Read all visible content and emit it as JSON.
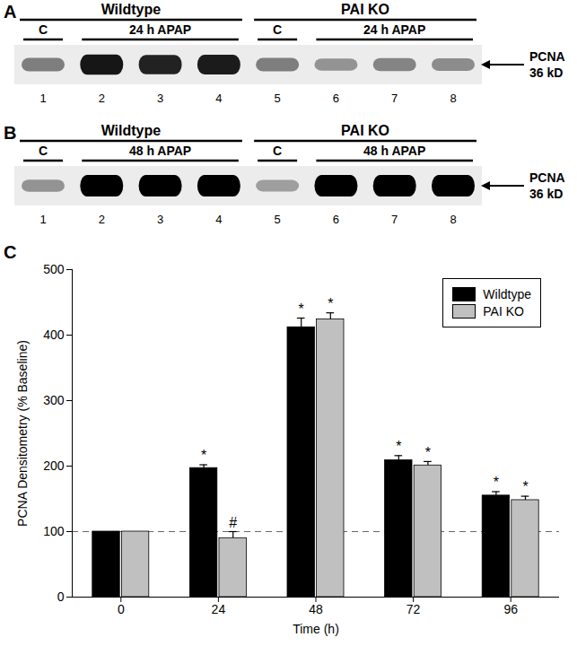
{
  "blots": [
    {
      "panel": "A",
      "groups": [
        {
          "name": "Wildtype",
          "conditions": [
            {
              "label": "C",
              "lanes": [
                1
              ]
            },
            {
              "label": "24 h APAP",
              "lanes": [
                2,
                3,
                4
              ]
            }
          ]
        },
        {
          "name": "PAI KO",
          "conditions": [
            {
              "label": "C",
              "lanes": [
                5
              ]
            },
            {
              "label": "24 h APAP",
              "lanes": [
                6,
                7,
                8
              ]
            }
          ]
        }
      ],
      "band": "PCNA",
      "size": "36 kD",
      "intensity": [
        0.45,
        0.9,
        0.85,
        0.88,
        0.45,
        0.35,
        0.42,
        0.38
      ]
    },
    {
      "panel": "B",
      "groups": [
        {
          "name": "Wildtype",
          "conditions": [
            {
              "label": "C",
              "lanes": [
                1
              ]
            },
            {
              "label": "48 h APAP",
              "lanes": [
                2,
                3,
                4
              ]
            }
          ]
        },
        {
          "name": "PAI KO",
          "conditions": [
            {
              "label": "C",
              "lanes": [
                5
              ]
            },
            {
              "label": "48 h APAP",
              "lanes": [
                6,
                7,
                8
              ]
            }
          ]
        }
      ],
      "band": "PCNA",
      "size": "36 kD",
      "intensity": [
        0.35,
        1,
        1,
        1,
        0.3,
        1,
        1,
        1
      ]
    }
  ],
  "chart_data": {
    "type": "bar",
    "panel": "C",
    "x_label": "Time (h)",
    "y_label": "PCNA Densitometry (% Baseline)",
    "categories": [
      0,
      24,
      48,
      72,
      96
    ],
    "ylim": [
      0,
      500
    ],
    "yticks": [
      0,
      100,
      200,
      300,
      400,
      500
    ],
    "reference_line": 100,
    "legend": "top-right",
    "series": [
      {
        "name": "Wildtype",
        "color": "#000000",
        "values": [
          100,
          197,
          412,
          209,
          155
        ],
        "errors": [
          0,
          5,
          14,
          7,
          6
        ],
        "annotations": [
          null,
          "*",
          "*",
          "*",
          "*"
        ]
      },
      {
        "name": "PAI KO",
        "color": "#c0c0c0",
        "values": [
          100,
          90,
          424,
          201,
          148
        ],
        "errors": [
          0,
          10,
          10,
          6,
          6
        ],
        "annotations": [
          null,
          "#",
          "*",
          "*",
          "*"
        ]
      }
    ]
  }
}
